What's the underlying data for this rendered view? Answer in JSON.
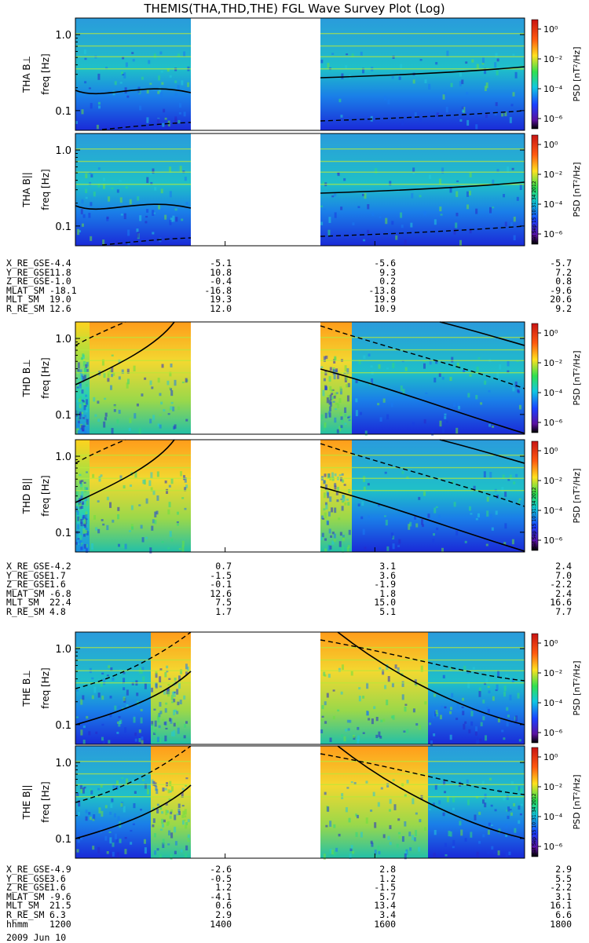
{
  "title": "THEMIS(THA,THD,THE) FGL Wave Survey Plot (Log)",
  "stamp": "Sat Sep 15 10:31:34 2012",
  "colorbar_label": "PSD [nT²/Hz]",
  "chart_data": {
    "type": "heatmap",
    "panels": [
      {
        "probe": "THA",
        "ylabel": "THA B⊥",
        "ylabel2": "freq [Hz]"
      },
      {
        "probe": "THA",
        "ylabel": "THA B||",
        "ylabel2": "freq [Hz]"
      },
      {
        "probe": "THD",
        "ylabel": "THD B⊥",
        "ylabel2": "freq [Hz]"
      },
      {
        "probe": "THD",
        "ylabel": "THD B||",
        "ylabel2": "freq [Hz]"
      },
      {
        "probe": "THE",
        "ylabel": "THE B⊥",
        "ylabel2": "freq [Hz]"
      },
      {
        "probe": "THE",
        "ylabel": "THE B||",
        "ylabel2": "freq [Hz]"
      }
    ],
    "y_ticks": [
      "1.0",
      "0.1"
    ],
    "y_scale": "log",
    "x_ticks": [
      "1200",
      "1400",
      "1600",
      "1800"
    ],
    "colorbar_ticks": [
      "10⁰",
      "10⁻²",
      "10⁻⁴",
      "10⁻⁶"
    ],
    "data_gap": "1330-1530"
  },
  "ephemeris": [
    {
      "probe": "THA",
      "rows": [
        {
          "label": "X_RE_GSE",
          "values": [
            "-4.4",
            "-5.1",
            "-5.6",
            "-5.7"
          ]
        },
        {
          "label": "Y_RE_GSE",
          "values": [
            "11.8",
            "10.8",
            "9.3",
            "7.2"
          ]
        },
        {
          "label": "Z_RE_GSE",
          "values": [
            "-1.0",
            "-0.4",
            "0.2",
            "0.8"
          ]
        },
        {
          "label": "MLAT_SM",
          "values": [
            "-18.1",
            "-16.8",
            "-13.8",
            "-9.6"
          ]
        },
        {
          "label": "MLT_SM",
          "values": [
            "19.0",
            "19.3",
            "19.9",
            "20.6"
          ]
        },
        {
          "label": "R_RE_SM",
          "values": [
            "12.6",
            "12.0",
            "10.9",
            "9.2"
          ]
        }
      ]
    },
    {
      "probe": "THD",
      "rows": [
        {
          "label": "X_RE_GSE",
          "values": [
            "-4.2",
            "0.7",
            "3.1",
            "2.4"
          ]
        },
        {
          "label": "Y_RE_GSE",
          "values": [
            "1.7",
            "-1.5",
            "3.6",
            "7.0"
          ]
        },
        {
          "label": "Z_RE_GSE",
          "values": [
            "1.6",
            "-0.1",
            "-1.9",
            "-2.2"
          ]
        },
        {
          "label": "MLAT_SM",
          "values": [
            "-6.8",
            "12.6",
            "1.8",
            "2.4"
          ]
        },
        {
          "label": "MLT_SM",
          "values": [
            "22.4",
            "7.5",
            "15.0",
            "16.6"
          ]
        },
        {
          "label": "R_RE_SM",
          "values": [
            "4.8",
            "1.7",
            "5.1",
            "7.7"
          ]
        }
      ]
    },
    {
      "probe": "THE",
      "rows": [
        {
          "label": "X_RE_GSE",
          "values": [
            "-4.9",
            "-2.6",
            "2.8",
            "2.9"
          ]
        },
        {
          "label": "Y_RE_GSE",
          "values": [
            "3.6",
            "-0.5",
            "1.2",
            "5.5"
          ]
        },
        {
          "label": "Z_RE_GSE",
          "values": [
            "1.6",
            "1.2",
            "-1.5",
            "-2.2"
          ]
        },
        {
          "label": "MLAT_SM",
          "values": [
            "-9.6",
            "-4.1",
            "5.7",
            "3.1"
          ]
        },
        {
          "label": "MLT_SM",
          "values": [
            "21.5",
            "0.6",
            "13.4",
            "16.1"
          ]
        },
        {
          "label": "R_RE_SM",
          "values": [
            "6.3",
            "2.9",
            "3.4",
            "6.6"
          ]
        },
        {
          "label": "hhmm",
          "values": [
            "1200",
            "1400",
            "1600",
            "1800"
          ]
        }
      ]
    }
  ],
  "date": "2009 Jun 10",
  "colors": {
    "gap": "#ffffff",
    "line": "#000000"
  }
}
